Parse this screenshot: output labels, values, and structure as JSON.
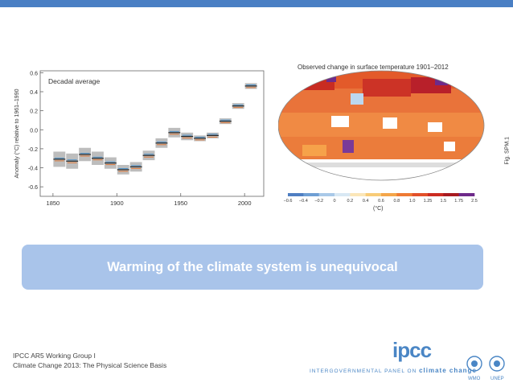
{
  "slide": {
    "headline": "Warming of the climate system is unequivocal",
    "footer_line1": "IPCC AR5 Working Group I",
    "footer_line2": "Climate Change 2013: The Physical Science Basis",
    "logo_text": "ipcc",
    "tagline_prefix": "INTERGOVERNMENTAL PANEL ON",
    "tagline_suffix": "climate change",
    "partner_label_1": "WMO",
    "partner_label_2": "UNEP",
    "accent_color": "#4a7fc4",
    "banner_color": "#a9c4ea"
  },
  "map": {
    "title": "Observed change in surface temperature 1901–2012",
    "unit": "(°C)",
    "fig_label": "Fig. SPM.1",
    "colorbar_ticks": [
      "−0.6",
      "−0.4",
      "−0.2",
      "0",
      "0.2",
      "0.4",
      "0.6",
      "0.8",
      "1.0",
      "1.25",
      "1.5",
      "1.75",
      "2.5"
    ],
    "colorbar_colors": [
      "#4f7fc2",
      "#6f9fd4",
      "#a9c9e8",
      "#d8e8f4",
      "#fbe6b8",
      "#f8cc78",
      "#f4a64a",
      "#ee7a34",
      "#e2502a",
      "#cc2c22",
      "#a81a20",
      "#6e2a8a"
    ]
  },
  "chart_data": {
    "type": "line",
    "title": "Decadal average",
    "xlabel": "",
    "ylabel": "Anomaly (°C) relative to 1961–1990",
    "xlim": [
      1840,
      2015
    ],
    "ylim": [
      -0.7,
      0.62
    ],
    "xticks": [
      1850,
      1900,
      1950,
      2000
    ],
    "yticks": [
      0.6,
      0.4,
      0.2,
      0.0,
      -0.2,
      -0.4,
      -0.6
    ],
    "decades": [
      1855,
      1865,
      1875,
      1885,
      1895,
      1905,
      1915,
      1925,
      1935,
      1945,
      1955,
      1965,
      1975,
      1985,
      1995,
      2005
    ],
    "values": [
      -0.31,
      -0.33,
      -0.26,
      -0.3,
      -0.35,
      -0.42,
      -0.39,
      -0.27,
      -0.14,
      -0.03,
      -0.07,
      -0.09,
      -0.06,
      0.09,
      0.25,
      0.46
    ],
    "uncertainty": [
      0.08,
      0.08,
      0.07,
      0.07,
      0.06,
      0.05,
      0.05,
      0.05,
      0.05,
      0.05,
      0.04,
      0.03,
      0.03,
      0.03,
      0.03,
      0.03
    ]
  }
}
